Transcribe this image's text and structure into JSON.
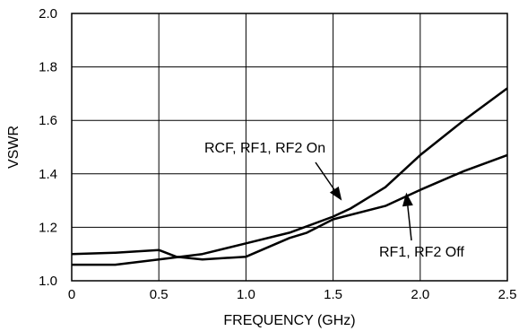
{
  "chart_data": {
    "type": "line",
    "title": "",
    "xlabel": "FREQUENCY (GHz)",
    "ylabel": "VSWR",
    "xlim": [
      0,
      2.5
    ],
    "ylim": [
      1.0,
      2.0
    ],
    "grid": true,
    "x_ticks": [
      0,
      0.5,
      1.0,
      1.5,
      2.0,
      2.5
    ],
    "x_tick_labels": [
      "0",
      "0.5",
      "1.0",
      "1.5",
      "2.0",
      "2.5"
    ],
    "y_ticks": [
      1.0,
      1.2,
      1.4,
      1.6,
      1.8,
      2.0
    ],
    "y_tick_labels": [
      "1.0",
      "1.2",
      "1.4",
      "1.6",
      "1.8",
      "2.0"
    ],
    "line_color": "#000000",
    "series": [
      {
        "name": "RCF, RF1, RF2 On",
        "x": [
          0,
          0.25,
          0.5,
          0.75,
          1.0,
          1.25,
          1.5,
          1.6,
          1.7,
          1.8,
          1.9,
          2.0,
          2.25,
          2.5
        ],
        "y": [
          1.06,
          1.06,
          1.08,
          1.1,
          1.14,
          1.18,
          1.24,
          1.27,
          1.31,
          1.35,
          1.41,
          1.47,
          1.6,
          1.72
        ]
      },
      {
        "name": "RF1, RF2 Off",
        "x": [
          0,
          0.25,
          0.5,
          0.6,
          0.75,
          1.0,
          1.25,
          1.35,
          1.5,
          1.8,
          1.9,
          2.0,
          2.25,
          2.5
        ],
        "y": [
          1.1,
          1.105,
          1.115,
          1.09,
          1.08,
          1.09,
          1.16,
          1.18,
          1.23,
          1.28,
          1.31,
          1.34,
          1.41,
          1.47
        ]
      }
    ],
    "annotations": [
      {
        "text": "RCF, RF1, RF2 On",
        "arrow_to": [
          1.55,
          1.3
        ]
      },
      {
        "text": "RF1, RF2 Off",
        "arrow_to": [
          1.92,
          1.33
        ]
      }
    ]
  }
}
